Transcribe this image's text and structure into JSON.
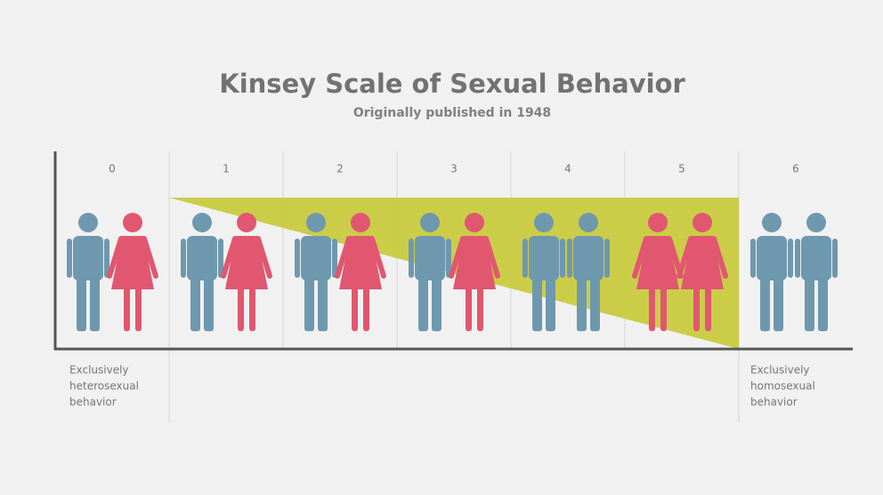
{
  "title": "Kinsey Scale of Sexual Behavior",
  "subtitle": "Originally published in 1948",
  "scale": [
    "0",
    "1",
    "2",
    "3",
    "4",
    "5",
    "6"
  ],
  "left_note": [
    "Exclusively",
    "heterosexual",
    "behavior"
  ],
  "right_note": [
    "Exclusively",
    "homosexual",
    "behavior"
  ]
}
